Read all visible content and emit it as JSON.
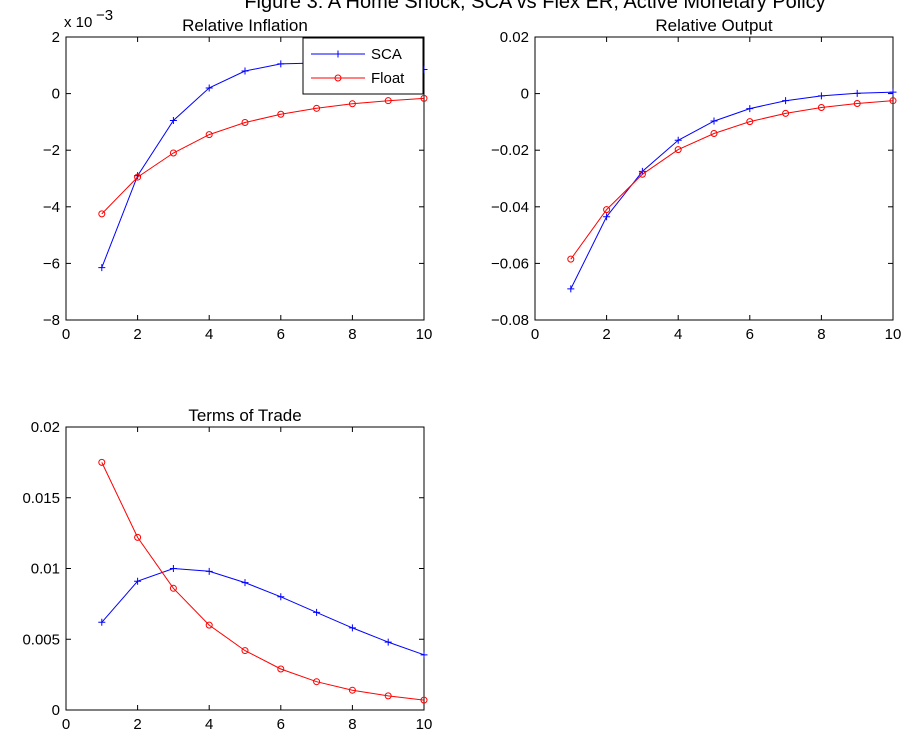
{
  "figure": {
    "suptitle": "Figure 3: A Home Shock, SCA vs Flex ER, Active Monetary Policy"
  },
  "colors": {
    "SCA": "#0000ff",
    "Float": "#ff0000"
  },
  "chart_data": [
    {
      "type": "line",
      "title": "Relative Inflation",
      "xlabel": "",
      "ylabel": "",
      "xlim": [
        0,
        10
      ],
      "ylim": [
        -0.008,
        0.002
      ],
      "xticks": [
        0,
        2,
        4,
        6,
        8,
        10
      ],
      "xtick_labels": [
        "0",
        "2",
        "4",
        "6",
        "8",
        "10"
      ],
      "yticks": [
        -0.008,
        -0.006,
        -0.004,
        -0.002,
        0,
        0.002
      ],
      "ytick_labels": [
        "−8",
        "−6",
        "−4",
        "−2",
        "0",
        "2"
      ],
      "y_exponent_base": "x 10",
      "y_exponent_power": "−3",
      "grid": false,
      "legend": "top-right",
      "x": [
        1,
        2,
        3,
        4,
        5,
        6,
        7,
        8,
        9,
        10
      ],
      "series": [
        {
          "name": "SCA",
          "marker": "+",
          "values": [
            -0.00615,
            -0.0029,
            -0.00095,
            0.0002,
            0.0008,
            0.00105,
            0.00108,
            0.00102,
            0.00093,
            0.00085
          ]
        },
        {
          "name": "Float",
          "marker": "o",
          "values": [
            -0.00425,
            -0.00295,
            -0.0021,
            -0.00145,
            -0.00102,
            -0.00073,
            -0.00052,
            -0.00036,
            -0.00025,
            -0.00017
          ]
        }
      ]
    },
    {
      "type": "line",
      "title": "Relative Output",
      "xlabel": "",
      "ylabel": "",
      "xlim": [
        0,
        10
      ],
      "ylim": [
        -0.08,
        0.02
      ],
      "xticks": [
        0,
        2,
        4,
        6,
        8,
        10
      ],
      "xtick_labels": [
        "0",
        "2",
        "4",
        "6",
        "8",
        "10"
      ],
      "yticks": [
        -0.08,
        -0.06,
        -0.04,
        -0.02,
        0,
        0.02
      ],
      "ytick_labels": [
        "−0.08",
        "−0.06",
        "−0.04",
        "−0.02",
        "0",
        "0.02"
      ],
      "grid": false,
      "legend": "none",
      "x": [
        1,
        2,
        3,
        4,
        5,
        6,
        7,
        8,
        9,
        10
      ],
      "series": [
        {
          "name": "SCA",
          "marker": "+",
          "values": [
            -0.069,
            -0.0435,
            -0.0275,
            -0.0165,
            -0.0097,
            -0.0053,
            -0.0025,
            -0.0008,
            0.0001,
            0.0005
          ]
        },
        {
          "name": "Float",
          "marker": "o",
          "values": [
            -0.0585,
            -0.041,
            -0.0285,
            -0.0198,
            -0.0141,
            -0.0099,
            -0.007,
            -0.0049,
            -0.0035,
            -0.0025
          ]
        }
      ]
    },
    {
      "type": "line",
      "title": "Terms of Trade",
      "xlabel": "",
      "ylabel": "",
      "xlim": [
        0,
        10
      ],
      "ylim": [
        0,
        0.02
      ],
      "xticks": [
        0,
        2,
        4,
        6,
        8,
        10
      ],
      "xtick_labels": [
        "0",
        "2",
        "4",
        "6",
        "8",
        "10"
      ],
      "yticks": [
        0,
        0.005,
        0.01,
        0.015,
        0.02
      ],
      "ytick_labels": [
        "0",
        "0.005",
        "0.01",
        "0.015",
        "0.02"
      ],
      "grid": false,
      "legend": "none",
      "x": [
        1,
        2,
        3,
        4,
        5,
        6,
        7,
        8,
        9,
        10
      ],
      "series": [
        {
          "name": "SCA",
          "marker": "+",
          "values": [
            0.0062,
            0.0091,
            0.01,
            0.0098,
            0.009,
            0.008,
            0.0069,
            0.0058,
            0.0048,
            0.0039
          ]
        },
        {
          "name": "Float",
          "marker": "o",
          "values": [
            0.0175,
            0.0122,
            0.0086,
            0.006,
            0.0042,
            0.0029,
            0.002,
            0.0014,
            0.001,
            0.0007
          ]
        }
      ]
    }
  ]
}
